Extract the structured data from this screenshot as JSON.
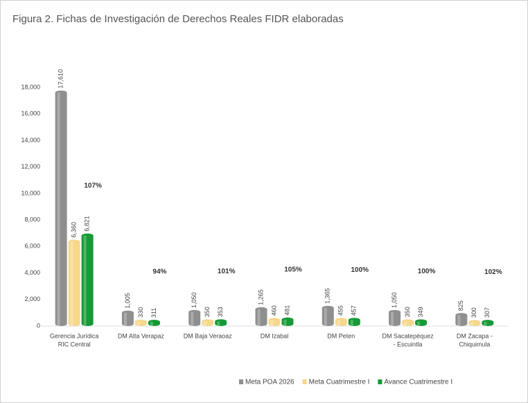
{
  "chart_data": {
    "type": "bar",
    "title": "Figura 2.  Fichas de Investigación de Derechos Reales FIDR elaboradas",
    "categories": [
      [
        "Gerencia Jurídica",
        "RIC Central"
      ],
      [
        "DM Alta Verapaz"
      ],
      [
        "DM Baja Veraoaz"
      ],
      [
        "DM Izabal"
      ],
      [
        "DM Peten"
      ],
      [
        "DM Sacatepéquez",
        "- Escuintla"
      ],
      [
        "DM Zacapa -",
        "Chiquimula"
      ]
    ],
    "series": [
      {
        "name": "Meta POA 2026",
        "color": "#8f8f8f",
        "values": [
          17610,
          1005,
          1050,
          1265,
          1365,
          1050,
          825
        ],
        "value_labels": [
          "17,610",
          "1,005",
          "1,050",
          "1,265",
          "1,365",
          "1,050",
          "825"
        ]
      },
      {
        "name": "Meta Cuatrimestre I",
        "color": "#f6d88c",
        "values": [
          6360,
          330,
          350,
          460,
          455,
          350,
          300
        ],
        "value_labels": [
          "6,360",
          "330",
          "350",
          "460",
          "455",
          "350",
          "300"
        ]
      },
      {
        "name": "Avance Cuatrimestre I",
        "color": "#159a36",
        "values": [
          6821,
          311,
          353,
          481,
          457,
          349,
          307
        ],
        "value_labels": [
          "6,821",
          "311",
          "353",
          "481",
          "457",
          "349",
          "307"
        ]
      }
    ],
    "annotations": [
      "107%",
      "94%",
      "101%",
      "105%",
      "100%",
      "100%",
      "102%"
    ],
    "ylim": [
      0,
      18000
    ],
    "yticks": [
      0,
      {
        "value": 2000,
        "label": "2,000"
      },
      {
        "value": 4000,
        "label": "4,000"
      },
      {
        "value": 6000,
        "label": "6,000"
      },
      {
        "value": 8000,
        "label": "8,000"
      },
      {
        "value": 10000,
        "label": "10,000"
      },
      {
        "value": 12000,
        "label": "12,000"
      },
      {
        "value": 14000,
        "label": "14,000"
      },
      {
        "value": 16000,
        "label": "16,000"
      },
      {
        "value": 18000,
        "label": "18,000"
      }
    ],
    "legend": "bottom-right"
  }
}
